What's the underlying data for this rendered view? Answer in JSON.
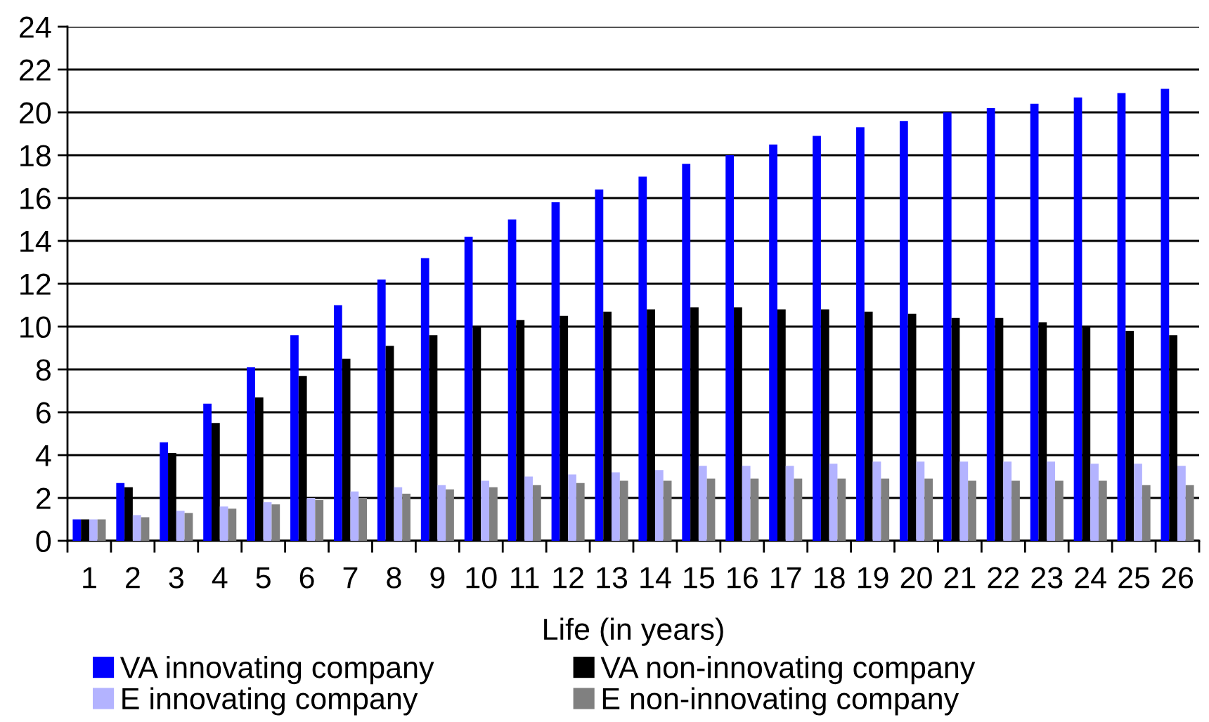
{
  "chart_data": {
    "type": "bar",
    "xlabel": "Life (in years)",
    "categories": [
      "1",
      "2",
      "3",
      "4",
      "5",
      "6",
      "7",
      "8",
      "9",
      "10",
      "11",
      "12",
      "13",
      "14",
      "15",
      "16",
      "17",
      "18",
      "19",
      "20",
      "21",
      "22",
      "23",
      "24",
      "25",
      "26"
    ],
    "series": [
      {
        "name": "VA innovating company",
        "color": "#0000ff",
        "values": [
          1.0,
          2.7,
          4.6,
          6.4,
          8.1,
          9.6,
          11.0,
          12.2,
          13.2,
          14.2,
          15.0,
          15.8,
          16.4,
          17.0,
          17.6,
          18.0,
          18.5,
          18.9,
          19.3,
          19.6,
          20.0,
          20.2,
          20.4,
          20.7,
          20.9,
          21.1
        ]
      },
      {
        "name": "VA non-innovating company",
        "color": "#000000",
        "values": [
          1.0,
          2.5,
          4.1,
          5.5,
          6.7,
          7.7,
          8.5,
          9.1,
          9.6,
          10.0,
          10.3,
          10.5,
          10.7,
          10.8,
          10.9,
          10.9,
          10.8,
          10.8,
          10.7,
          10.6,
          10.4,
          10.4,
          10.2,
          10.0,
          9.8,
          9.6
        ]
      },
      {
        "name": "E innovating company",
        "color": "#b3b3ff",
        "values": [
          1.0,
          1.2,
          1.4,
          1.6,
          1.8,
          2.0,
          2.3,
          2.5,
          2.6,
          2.8,
          3.0,
          3.1,
          3.2,
          3.3,
          3.5,
          3.5,
          3.5,
          3.6,
          3.7,
          3.7,
          3.7,
          3.7,
          3.7,
          3.6,
          3.6,
          3.5
        ]
      },
      {
        "name": "E non-innovating company",
        "color": "#808080",
        "values": [
          1.0,
          1.1,
          1.3,
          1.5,
          1.7,
          1.9,
          2.0,
          2.2,
          2.4,
          2.5,
          2.6,
          2.7,
          2.8,
          2.8,
          2.9,
          2.9,
          2.9,
          2.9,
          2.9,
          2.9,
          2.8,
          2.8,
          2.8,
          2.8,
          2.6,
          2.6
        ]
      }
    ],
    "ylim": [
      0,
      24
    ],
    "yticks": [
      0,
      2,
      4,
      6,
      8,
      10,
      12,
      14,
      16,
      18,
      20,
      22,
      24
    ],
    "grid": "y",
    "legend": "bottom"
  }
}
